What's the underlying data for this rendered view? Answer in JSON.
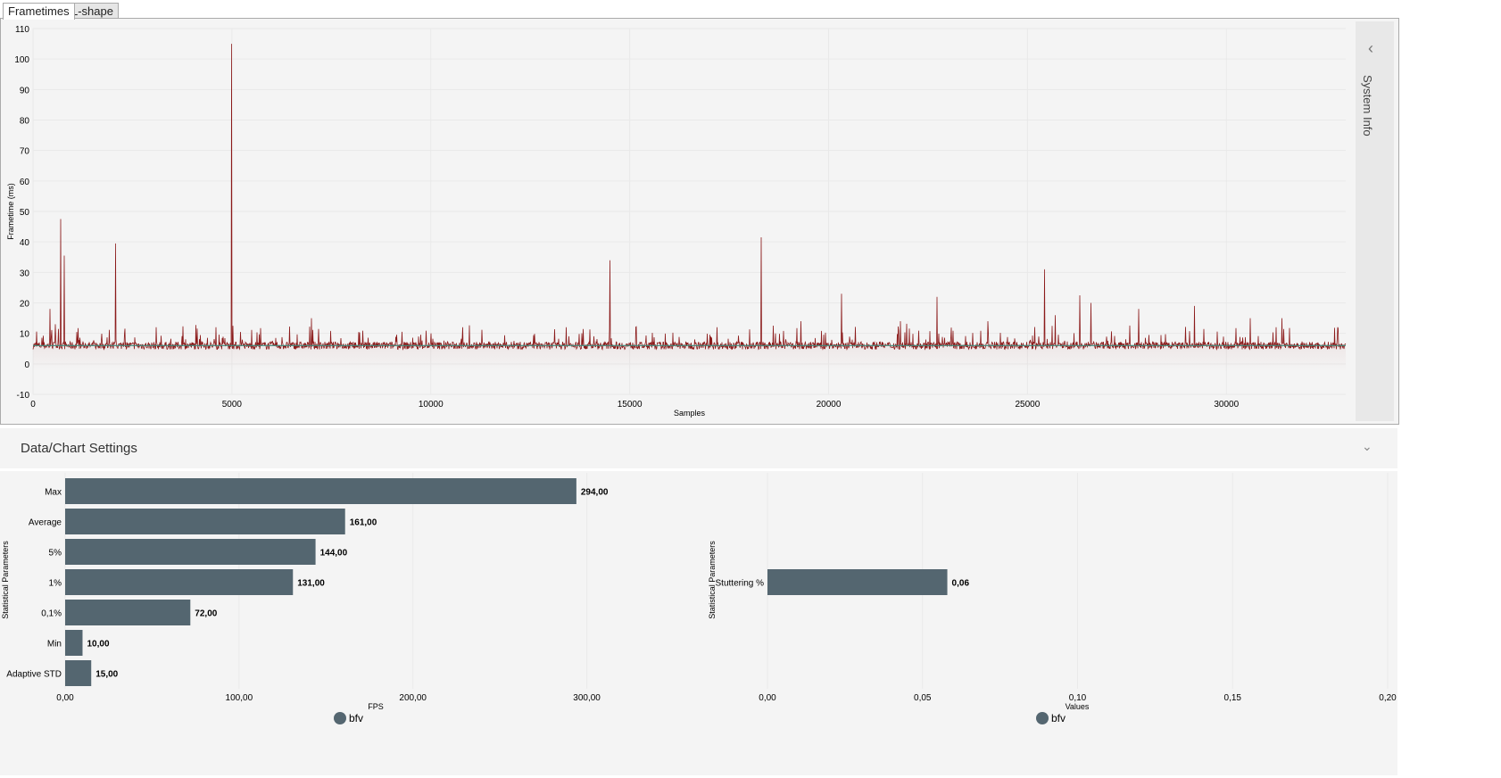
{
  "tabs": [
    {
      "label": "Frametimes",
      "active": true
    },
    {
      "label": "L-shape",
      "active": false
    }
  ],
  "side_panel": {
    "label": "System Info",
    "icon": "chevron-left-icon"
  },
  "settings": {
    "label": "Data/Chart Settings",
    "icon": "chevron-down-icon"
  },
  "colors": {
    "line": "#8b1a1a",
    "average": "#3a8a7a",
    "bar": "#546670"
  },
  "chart_data": [
    {
      "type": "line",
      "ylabel": "Frametime (ms)",
      "xlabel": "Samples",
      "xlim": [
        0,
        33000
      ],
      "ylim": [
        -10,
        110
      ],
      "xticks": [
        0,
        5000,
        10000,
        15000,
        20000,
        25000,
        30000
      ],
      "yticks": [
        -10,
        0,
        10,
        20,
        30,
        40,
        50,
        60,
        70,
        80,
        90,
        100,
        110
      ],
      "baseline": 6,
      "spikes": [
        [
          430,
          18
        ],
        [
          560,
          13
        ],
        [
          700,
          47.5
        ],
        [
          780,
          35.5
        ],
        [
          2080,
          39.5
        ],
        [
          3100,
          12
        ],
        [
          4600,
          12
        ],
        [
          4990,
          105
        ],
        [
          7000,
          15
        ],
        [
          10800,
          12
        ],
        [
          13400,
          12
        ],
        [
          14500,
          34
        ],
        [
          17200,
          12
        ],
        [
          18310,
          41.5
        ],
        [
          19300,
          14
        ],
        [
          20330,
          23
        ],
        [
          21800,
          14
        ],
        [
          22720,
          22
        ],
        [
          24000,
          14
        ],
        [
          25430,
          31
        ],
        [
          25700,
          16
        ],
        [
          26320,
          22.5
        ],
        [
          26600,
          20
        ],
        [
          27800,
          18
        ],
        [
          29200,
          19
        ],
        [
          30600,
          15
        ],
        [
          31400,
          15
        ],
        [
          32800,
          12
        ]
      ],
      "grid": true
    },
    {
      "type": "bar",
      "orientation": "horizontal",
      "ylabel": "Statistical Parameters",
      "xlabel": "FPS",
      "xlim": [
        0,
        350
      ],
      "xticks": [
        "0,00",
        "100,00",
        "200,00",
        "300,00"
      ],
      "xtick_values": [
        0,
        100,
        200,
        300
      ],
      "categories": [
        "Max",
        "Average",
        "5%",
        "1%",
        "0,1%",
        "Min",
        "Adaptive STD"
      ],
      "values": [
        294,
        161,
        144,
        131,
        72,
        10,
        15
      ],
      "labels": [
        "294,00",
        "161,00",
        "144,00",
        "131,00",
        "72,00",
        "10,00",
        "15,00"
      ],
      "legend": "bfv"
    },
    {
      "type": "bar",
      "orientation": "horizontal",
      "ylabel": "Statistical Parameters",
      "xlabel": "Values",
      "xlim": [
        0,
        0.2
      ],
      "xticks": [
        "0,00",
        "0,05",
        "0,10",
        "0,15",
        "0,20"
      ],
      "xtick_values": [
        0,
        0.05,
        0.1,
        0.15,
        0.2
      ],
      "categories": [
        "Stuttering %"
      ],
      "values": [
        0.058
      ],
      "labels": [
        "0,06"
      ],
      "legend": "bfv"
    }
  ]
}
